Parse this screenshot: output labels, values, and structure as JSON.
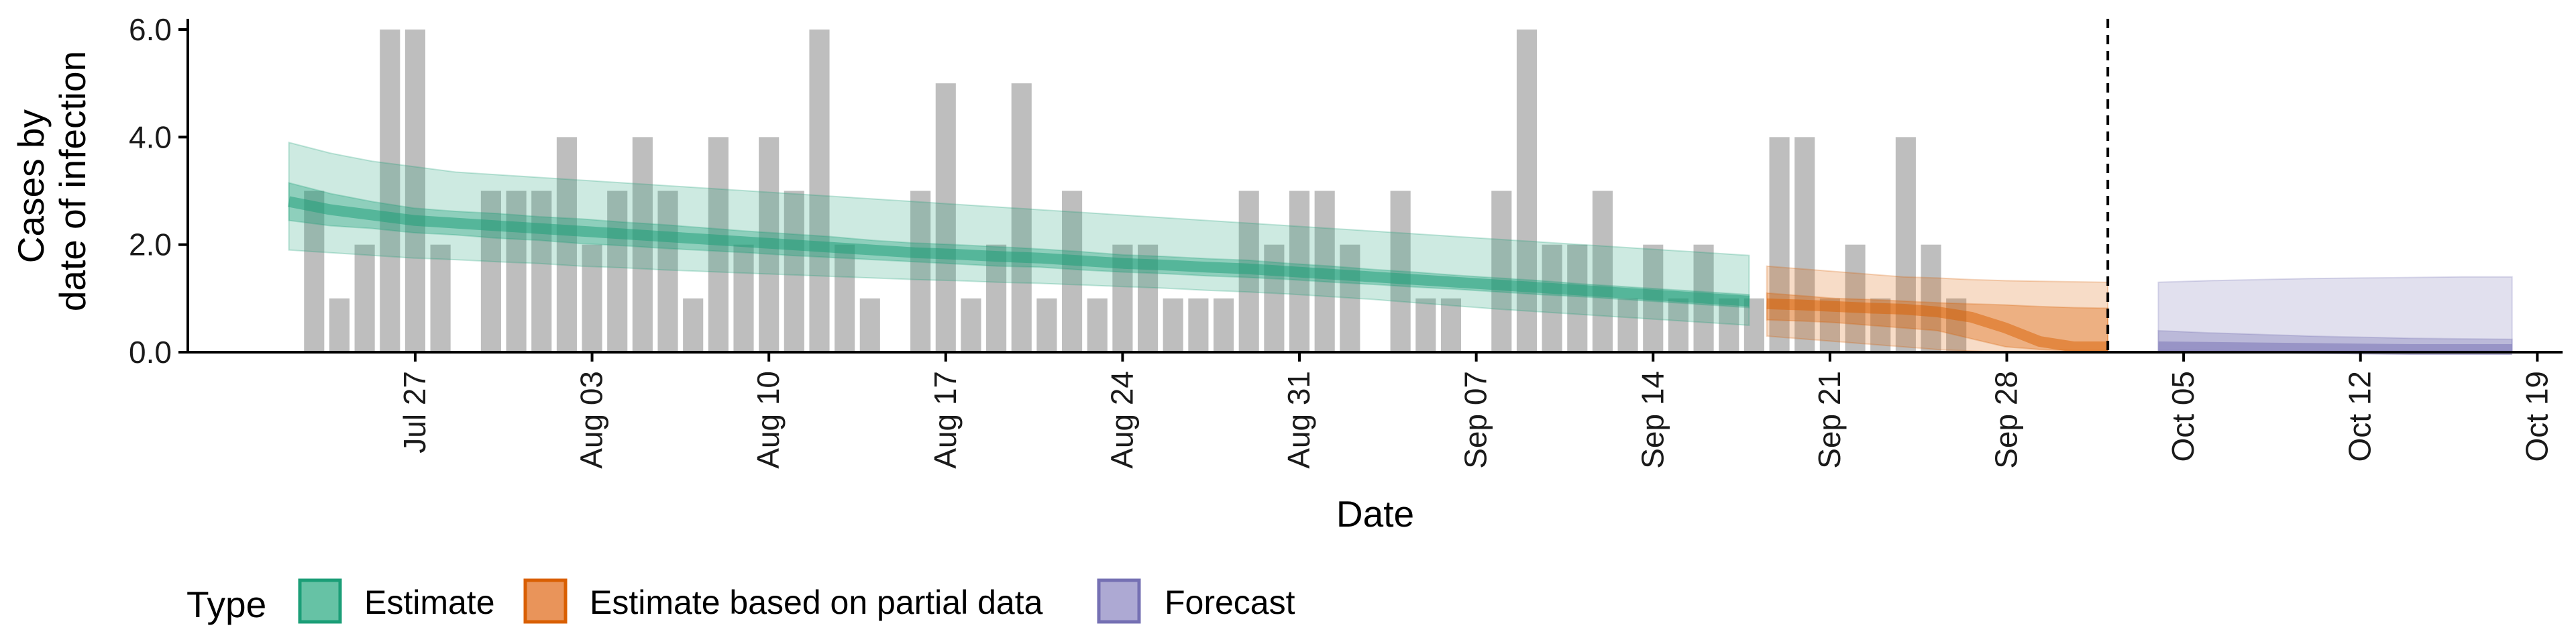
{
  "chart_data": {
    "type": "bar",
    "title": "",
    "xlabel": "Date",
    "ylabel": [
      "Cases by",
      "date of infection"
    ],
    "ylim": [
      0,
      6.2
    ],
    "yticks": [
      0,
      2,
      4,
      6
    ],
    "ytick_labels": [
      "0.0",
      "2.0",
      "4.0",
      "6.0"
    ],
    "x_start": "2021-07-23",
    "xlim_days": [
      -5,
      89
    ],
    "xtick_days": [
      4,
      11,
      18,
      25,
      32,
      39,
      46,
      53,
      60,
      67,
      74,
      81,
      88
    ],
    "xtick_labels": [
      "Jul 27",
      "Aug 03",
      "Aug 10",
      "Aug 17",
      "Aug 24",
      "Aug 31",
      "Sep 07",
      "Sep 14",
      "Sep 21",
      "Sep 28",
      "Oct 05",
      "Oct 12",
      "Oct 19"
    ],
    "forecast_line_day": 71,
    "grid": false,
    "legend_position": "bottom",
    "legend_title": "Type",
    "reported_cases": [
      3,
      1,
      2,
      6,
      6,
      2,
      0,
      3,
      3,
      3,
      4,
      2,
      3,
      4,
      3,
      1,
      4,
      2,
      4,
      3,
      6,
      2,
      1,
      0,
      3,
      5,
      1,
      2,
      5,
      1,
      3,
      1,
      2,
      2,
      1,
      1,
      1,
      3,
      2,
      3,
      3,
      2,
      0,
      3,
      1,
      1,
      0,
      3,
      6,
      2,
      2,
      3,
      1,
      2,
      1,
      2,
      1,
      1,
      4,
      4,
      1,
      2,
      1,
      4,
      2,
      1
    ],
    "series": [
      {
        "name": "Estimate",
        "color": "#1b9e77",
        "days": [
          0,
          3,
          6,
          9,
          12,
          15,
          18,
          21,
          24,
          27,
          30,
          33,
          36,
          39,
          42,
          45,
          48,
          51,
          54,
          57,
          60,
          63,
          66,
          69,
          72,
          75,
          78,
          81,
          84,
          87,
          90,
          93,
          96,
          99,
          102,
          105
        ],
        "median": [
          2.8,
          2.65,
          2.55,
          2.45,
          2.4,
          2.35,
          2.3,
          2.25,
          2.2,
          2.15,
          2.1,
          2.05,
          2.0,
          1.95,
          1.9,
          1.85,
          1.82,
          1.78,
          1.75,
          1.7,
          1.65,
          1.62,
          1.58,
          1.55,
          1.5,
          1.45,
          1.4,
          1.35,
          1.3,
          1.25,
          1.2,
          1.15,
          1.1,
          1.05,
          1.0,
          0.95
        ],
        "lower50": [
          2.45,
          2.35,
          2.3,
          2.22,
          2.18,
          2.12,
          2.08,
          2.02,
          1.98,
          1.93,
          1.89,
          1.85,
          1.8,
          1.76,
          1.72,
          1.68,
          1.64,
          1.6,
          1.58,
          1.53,
          1.49,
          1.46,
          1.42,
          1.39,
          1.35,
          1.3,
          1.26,
          1.21,
          1.17,
          1.12,
          1.07,
          1.03,
          0.98,
          0.93,
          0.88,
          0.83
        ],
        "upper50": [
          3.15,
          2.95,
          2.8,
          2.68,
          2.62,
          2.58,
          2.52,
          2.48,
          2.42,
          2.37,
          2.31,
          2.25,
          2.2,
          2.15,
          2.08,
          2.03,
          2.0,
          1.96,
          1.92,
          1.87,
          1.81,
          1.78,
          1.74,
          1.71,
          1.65,
          1.6,
          1.54,
          1.49,
          1.43,
          1.38,
          1.33,
          1.27,
          1.22,
          1.17,
          1.12,
          1.07
        ],
        "lower90": [
          1.9,
          1.85,
          1.8,
          1.75,
          1.72,
          1.68,
          1.65,
          1.6,
          1.57,
          1.53,
          1.5,
          1.47,
          1.44,
          1.41,
          1.38,
          1.35,
          1.33,
          1.3,
          1.28,
          1.25,
          1.22,
          1.19,
          1.15,
          1.12,
          1.08,
          1.03,
          0.98,
          0.92,
          0.86,
          0.8,
          0.75,
          0.7,
          0.65,
          0.6,
          0.55,
          0.5
        ],
        "upper90": [
          3.9,
          3.7,
          3.55,
          3.45,
          3.35,
          3.3,
          3.25,
          3.2,
          3.15,
          3.1,
          3.05,
          3.0,
          2.95,
          2.9,
          2.85,
          2.8,
          2.75,
          2.7,
          2.65,
          2.6,
          2.55,
          2.5,
          2.45,
          2.4,
          2.35,
          2.3,
          2.25,
          2.2,
          2.15,
          2.1,
          2.05,
          2.0,
          1.95,
          1.9,
          1.85,
          1.8
        ]
      },
      {
        "name": "Estimate based on partial data",
        "color": "#d95f02",
        "days": [
          0,
          2,
          4,
          6,
          8,
          10,
          12,
          14,
          16,
          18,
          20
        ],
        "median": [
          0.9,
          0.88,
          0.85,
          0.82,
          0.8,
          0.75,
          0.65,
          0.45,
          0.2,
          0.1,
          0.1
        ],
        "lower50": [
          0.6,
          0.58,
          0.55,
          0.5,
          0.45,
          0.4,
          0.25,
          0.1,
          0.05,
          0.03,
          0.03
        ],
        "upper50": [
          1.1,
          1.05,
          1.0,
          0.98,
          0.95,
          0.92,
          0.9,
          0.88,
          0.85,
          0.83,
          0.82
        ],
        "lower90": [
          0.3,
          0.25,
          0.2,
          0.15,
          0.1,
          0.05,
          0.02,
          0.0,
          0.0,
          0.0,
          0.0
        ],
        "upper90": [
          1.6,
          1.55,
          1.5,
          1.45,
          1.4,
          1.38,
          1.35,
          1.33,
          1.32,
          1.31,
          1.3
        ]
      },
      {
        "name": "Forecast",
        "color": "#7570b3",
        "days": [
          0,
          2,
          4,
          6,
          8,
          10,
          12,
          14
        ],
        "median": [
          0.1,
          0.09,
          0.08,
          0.07,
          0.06,
          0.05,
          0.05,
          0.05
        ],
        "lower50": [
          0.03,
          0.03,
          0.02,
          0.02,
          0.02,
          0.02,
          0.02,
          0.02
        ],
        "upper50": [
          0.4,
          0.36,
          0.33,
          0.3,
          0.28,
          0.26,
          0.25,
          0.24
        ],
        "lower90": [
          0.0,
          0.0,
          0.0,
          0.0,
          0.0,
          0.0,
          0.0,
          0.0
        ],
        "upper90": [
          1.3,
          1.33,
          1.35,
          1.37,
          1.38,
          1.39,
          1.4,
          1.4
        ]
      }
    ]
  }
}
